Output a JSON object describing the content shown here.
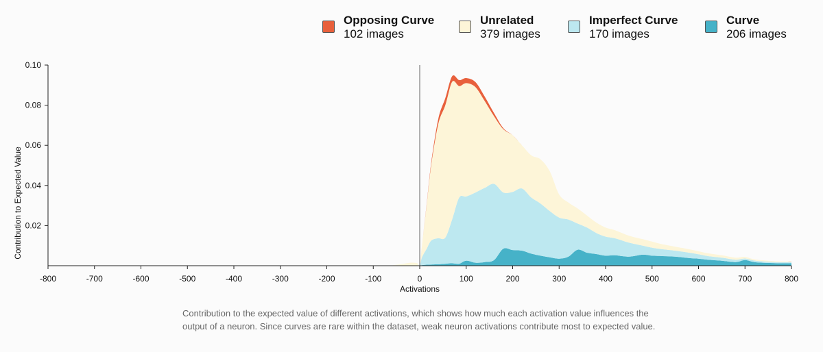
{
  "legend": [
    {
      "name": "Opposing Curve",
      "count": "102 images",
      "color": "#e8603c"
    },
    {
      "name": "Unrelated",
      "count": "379 images",
      "color": "#fdf5d8"
    },
    {
      "name": "Imperfect Curve",
      "count": "170 images",
      "color": "#bde8f0"
    },
    {
      "name": "Curve",
      "count": "206 images",
      "color": "#46b2c8"
    }
  ],
  "caption": "Contribution to the expected value of different activations, which shows how much each activation value influences the output of a neuron. Since curves are rare within the dataset, weak neuron activations contribute most to expected value.",
  "chart_data": {
    "type": "area",
    "stacked": true,
    "xlabel": "Activations",
    "ylabel": "Contribution to Expected Value",
    "xlim": [
      -800,
      800
    ],
    "ylim": [
      0,
      0.1
    ],
    "xticks": [
      "-800",
      "-700",
      "-600",
      "-500",
      "-400",
      "-300",
      "-200",
      "-100",
      "0",
      "100",
      "200",
      "300",
      "400",
      "500",
      "600",
      "700",
      "800"
    ],
    "yticks": [
      "0.02",
      "0.04",
      "0.06",
      "0.08",
      "0.10"
    ],
    "x": [
      -800,
      -100,
      -60,
      -40,
      -20,
      -5,
      0,
      5,
      15,
      25,
      40,
      55,
      70,
      85,
      100,
      120,
      140,
      160,
      180,
      200,
      220,
      240,
      260,
      280,
      300,
      320,
      340,
      360,
      380,
      400,
      420,
      450,
      480,
      500,
      520,
      550,
      580,
      600,
      620,
      650,
      680,
      700,
      720,
      750,
      780,
      800
    ],
    "series": [
      {
        "name": "Curve",
        "color": "#46b2c8",
        "values": [
          0,
          0,
          0,
          0,
          0,
          0,
          0,
          0.0003,
          0.0005,
          0.0006,
          0.0007,
          0.001,
          0.0012,
          0.001,
          0.0025,
          0.0015,
          0.0018,
          0.0028,
          0.0085,
          0.0078,
          0.0075,
          0.006,
          0.005,
          0.0042,
          0.0035,
          0.0045,
          0.008,
          0.0065,
          0.0058,
          0.005,
          0.0052,
          0.0045,
          0.0055,
          0.005,
          0.0048,
          0.0045,
          0.0038,
          0.0035,
          0.003,
          0.0025,
          0.0018,
          0.0028,
          0.0018,
          0.0014,
          0.0012,
          0.0013
        ]
      },
      {
        "name": "Imperfect Curve",
        "color": "#bde8f0",
        "values": [
          0,
          0,
          0,
          0,
          0,
          0,
          0,
          0.004,
          0.008,
          0.012,
          0.013,
          0.013,
          0.022,
          0.033,
          0.032,
          0.035,
          0.037,
          0.038,
          0.028,
          0.029,
          0.031,
          0.028,
          0.026,
          0.023,
          0.0205,
          0.0185,
          0.013,
          0.0125,
          0.0105,
          0.0095,
          0.0085,
          0.007,
          0.0045,
          0.004,
          0.0035,
          0.003,
          0.0027,
          0.0022,
          0.0018,
          0.0015,
          0.0012,
          0.0008,
          0.0008,
          0.0006,
          0.0005,
          0.0005
        ]
      },
      {
        "name": "Unrelated",
        "color": "#fdf5d8",
        "values": [
          0,
          0,
          0.0003,
          0.0008,
          0.0015,
          0.0012,
          0,
          0.006,
          0.022,
          0.038,
          0.057,
          0.066,
          0.0685,
          0.0555,
          0.0565,
          0.0525,
          0.0432,
          0.0337,
          0.0315,
          0.0282,
          0.0215,
          0.021,
          0.022,
          0.0198,
          0.0115,
          0.0085,
          0.0075,
          0.006,
          0.0052,
          0.0045,
          0.004,
          0.0035,
          0.0032,
          0.003,
          0.0025,
          0.002,
          0.0017,
          0.0015,
          0.0014,
          0.0012,
          0.001,
          0.0008,
          0.0006,
          0.0005,
          0.0004,
          0.0003
        ]
      },
      {
        "name": "Opposing Curve",
        "color": "#e8603c",
        "values": [
          0,
          0,
          0,
          0,
          0,
          0,
          0,
          0,
          0.0005,
          0.0012,
          0.0025,
          0.0035,
          0.0028,
          0.003,
          0.0025,
          0.0025,
          0.0022,
          0.0015,
          0.0005,
          0,
          0,
          0,
          0,
          0,
          0,
          0,
          0,
          0,
          0,
          0,
          0,
          0,
          0,
          0,
          0,
          0,
          0,
          0,
          0,
          0,
          0,
          0,
          0,
          0,
          0,
          0
        ]
      }
    ]
  }
}
